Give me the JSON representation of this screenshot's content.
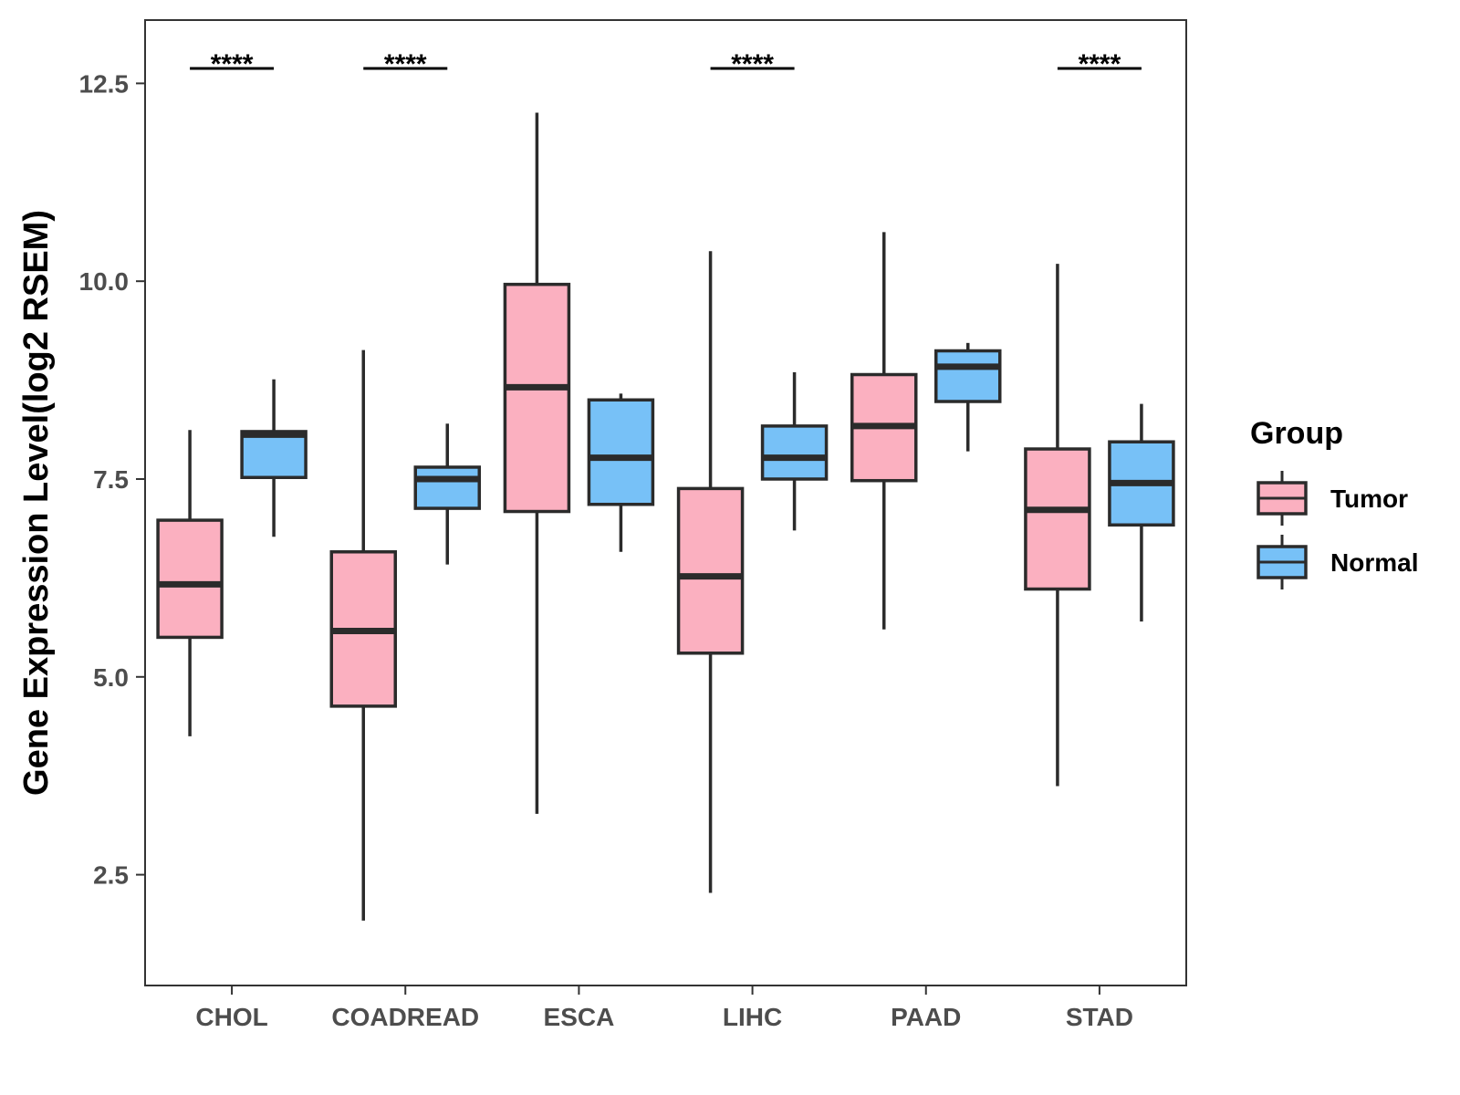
{
  "chart_data": {
    "type": "boxplot",
    "title": "",
    "xlabel": "",
    "ylabel": "Gene Expression Level(log2 RSEM)",
    "ylim": [
      1.1,
      13.3
    ],
    "yticks": [
      2.5,
      5.0,
      7.5,
      10.0,
      12.5
    ],
    "ytick_labels": [
      "2.5",
      "5.0",
      "7.5",
      "10.0",
      "12.5"
    ],
    "categories": [
      "CHOL",
      "COADREAD",
      "ESCA",
      "LIHC",
      "PAAD",
      "STAD"
    ],
    "legend": {
      "title": "Group",
      "position": "right",
      "entries": [
        {
          "name": "Tumor",
          "color": "#FBB0C0"
        },
        {
          "name": "Normal",
          "color": "#77C1F7"
        }
      ]
    },
    "series": [
      {
        "name": "Tumor",
        "color": "#FBB0C0",
        "boxes": [
          {
            "min": 4.25,
            "q1": 5.5,
            "median": 6.17,
            "q3": 6.98,
            "max": 8.12
          },
          {
            "min": 1.92,
            "q1": 4.63,
            "median": 5.58,
            "q3": 6.58,
            "max": 9.13
          },
          {
            "min": 3.27,
            "q1": 7.09,
            "median": 8.66,
            "q3": 9.96,
            "max": 12.13
          },
          {
            "min": 2.27,
            "q1": 5.3,
            "median": 6.27,
            "q3": 7.38,
            "max": 10.38
          },
          {
            "min": 5.6,
            "q1": 7.48,
            "median": 8.17,
            "q3": 8.82,
            "max": 10.62
          },
          {
            "min": 3.62,
            "q1": 6.11,
            "median": 7.11,
            "q3": 7.88,
            "max": 10.22
          }
        ]
      },
      {
        "name": "Normal",
        "color": "#77C1F7",
        "boxes": [
          {
            "min": 6.77,
            "q1": 7.52,
            "median": 8.06,
            "q3": 8.1,
            "max": 8.76
          },
          {
            "min": 6.42,
            "q1": 7.13,
            "median": 7.5,
            "q3": 7.65,
            "max": 8.2
          },
          {
            "min": 6.58,
            "q1": 7.18,
            "median": 7.77,
            "q3": 8.5,
            "max": 8.58
          },
          {
            "min": 6.85,
            "q1": 7.5,
            "median": 7.77,
            "q3": 8.17,
            "max": 8.85
          },
          {
            "min": 7.85,
            "q1": 8.48,
            "median": 8.92,
            "q3": 9.12,
            "max": 9.22
          },
          {
            "min": 5.7,
            "q1": 6.92,
            "median": 7.45,
            "q3": 7.97,
            "max": 8.45
          }
        ]
      }
    ],
    "significance": [
      {
        "category": "CHOL",
        "label": "****"
      },
      {
        "category": "COADREAD",
        "label": "****"
      },
      {
        "category": "LIHC",
        "label": "****"
      },
      {
        "category": "STAD",
        "label": "****"
      }
    ],
    "grid": false
  }
}
